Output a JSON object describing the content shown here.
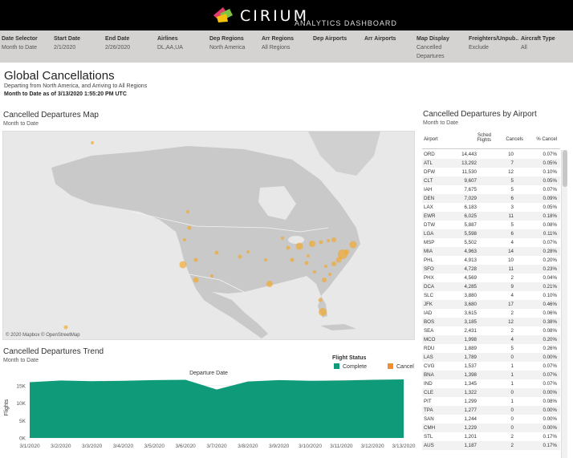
{
  "header": {
    "brand": "CIRIUM",
    "subtitle": "ANALYTICS DASHBOARD"
  },
  "filters": [
    {
      "label": "Date Selector",
      "value": "Month to Date"
    },
    {
      "label": "Start Date",
      "value": "2/1/2020"
    },
    {
      "label": "End Date",
      "value": "2/26/2020"
    },
    {
      "label": "Airlines",
      "value": "DL,AA,UA"
    },
    {
      "label": "Dep Regions",
      "value": "North America"
    },
    {
      "label": "Arr Regions",
      "value": "All Regions"
    },
    {
      "label": "Dep Airports",
      "value": ""
    },
    {
      "label": "Arr Airports",
      "value": ""
    },
    {
      "label": "Map Display",
      "value": "Cancelled Departures"
    },
    {
      "label": "Freighters/Unpub..",
      "value": "Exclude"
    },
    {
      "label": "Aircraft Type",
      "value": "All"
    }
  ],
  "page": {
    "title": "Global Cancellations",
    "subtitle": "Departing from North America,  and  Arriving to All Regions",
    "as_of": "Month to Date as of 3/13/2020 1:55:20 PM UTC"
  },
  "map": {
    "title": "Cancelled Departures Map",
    "subtitle": "Month to Date",
    "credit": "© 2020 Mapbox © OpenStreetMap",
    "land_color": "#c9c9c9",
    "water_color": "#e8e8e8",
    "bubble_color": "#f5a623"
  },
  "trend": {
    "title": "Cancelled Departures Trend",
    "subtitle": "Month to Date",
    "legend_title": "Flight Status",
    "legend": [
      {
        "name": "Complete",
        "color": "#0f9a7a"
      },
      {
        "name": "Cancel",
        "color": "#f28e2b"
      }
    ]
  },
  "chart_data": {
    "type": "area",
    "title": "Departure Date",
    "xlabel": "",
    "ylabel": "Flights",
    "x": [
      "3/1/2020",
      "3/2/2020",
      "3/3/2020",
      "3/4/2020",
      "3/5/2020",
      "3/6/2020",
      "3/7/2020",
      "3/8/2020",
      "3/9/2020",
      "3/10/2020",
      "3/11/2020",
      "3/12/2020",
      "3/13/2020"
    ],
    "series": [
      {
        "name": "Complete",
        "values": [
          16000,
          16500,
          16300,
          16400,
          16600,
          16700,
          13900,
          16200,
          16600,
          16400,
          16500,
          16700,
          16800
        ]
      },
      {
        "name": "Cancel",
        "values": [
          5,
          6,
          5,
          5,
          6,
          7,
          4,
          5,
          6,
          6,
          7,
          8,
          9
        ]
      }
    ],
    "yticks": [
      "0K",
      "5K",
      "10K",
      "15K"
    ],
    "ylim": [
      0,
      17500
    ],
    "grid": true
  },
  "airports": {
    "title": "Cancelled Departures by Airport",
    "subtitle": "Month to Date",
    "columns": [
      "Airport",
      "Sched Flights",
      "Cancels",
      "% Cancel"
    ],
    "rows": [
      [
        "ORD",
        "14,443",
        "10",
        "0.07%"
      ],
      [
        "ATL",
        "13,292",
        "7",
        "0.05%"
      ],
      [
        "DFW",
        "11,530",
        "12",
        "0.10%"
      ],
      [
        "CLT",
        "9,607",
        "5",
        "0.05%"
      ],
      [
        "IAH",
        "7,675",
        "5",
        "0.07%"
      ],
      [
        "DEN",
        "7,029",
        "6",
        "0.09%"
      ],
      [
        "LAX",
        "6,183",
        "3",
        "0.05%"
      ],
      [
        "EWR",
        "6,025",
        "11",
        "0.18%"
      ],
      [
        "DTW",
        "5,887",
        "5",
        "0.08%"
      ],
      [
        "LGA",
        "5,598",
        "6",
        "0.11%"
      ],
      [
        "MSP",
        "5,502",
        "4",
        "0.07%"
      ],
      [
        "MIA",
        "4,963",
        "14",
        "0.28%"
      ],
      [
        "PHL",
        "4,913",
        "10",
        "0.20%"
      ],
      [
        "SFO",
        "4,728",
        "11",
        "0.23%"
      ],
      [
        "PHX",
        "4,569",
        "2",
        "0.04%"
      ],
      [
        "DCA",
        "4,285",
        "9",
        "0.21%"
      ],
      [
        "SLC",
        "3,880",
        "4",
        "0.10%"
      ],
      [
        "JFK",
        "3,680",
        "17",
        "0.46%"
      ],
      [
        "IAD",
        "3,615",
        "2",
        "0.06%"
      ],
      [
        "BOS",
        "3,185",
        "12",
        "0.38%"
      ],
      [
        "SEA",
        "2,431",
        "2",
        "0.08%"
      ],
      [
        "MCO",
        "1,998",
        "4",
        "0.20%"
      ],
      [
        "RDU",
        "1,889",
        "5",
        "0.26%"
      ],
      [
        "LAS",
        "1,789",
        "0",
        "0.00%"
      ],
      [
        "CVG",
        "1,537",
        "1",
        "0.07%"
      ],
      [
        "BNA",
        "1,398",
        "1",
        "0.07%"
      ],
      [
        "IND",
        "1,345",
        "1",
        "0.07%"
      ],
      [
        "CLE",
        "1,322",
        "0",
        "0.00%"
      ],
      [
        "PIT",
        "1,299",
        "1",
        "0.08%"
      ],
      [
        "TPA",
        "1,277",
        "0",
        "0.00%"
      ],
      [
        "SAN",
        "1,244",
        "0",
        "0.00%"
      ],
      [
        "CMH",
        "1,229",
        "0",
        "0.00%"
      ],
      [
        "STL",
        "1,201",
        "2",
        "0.17%"
      ],
      [
        "AUS",
        "1,187",
        "2",
        "0.17%"
      ]
    ]
  }
}
